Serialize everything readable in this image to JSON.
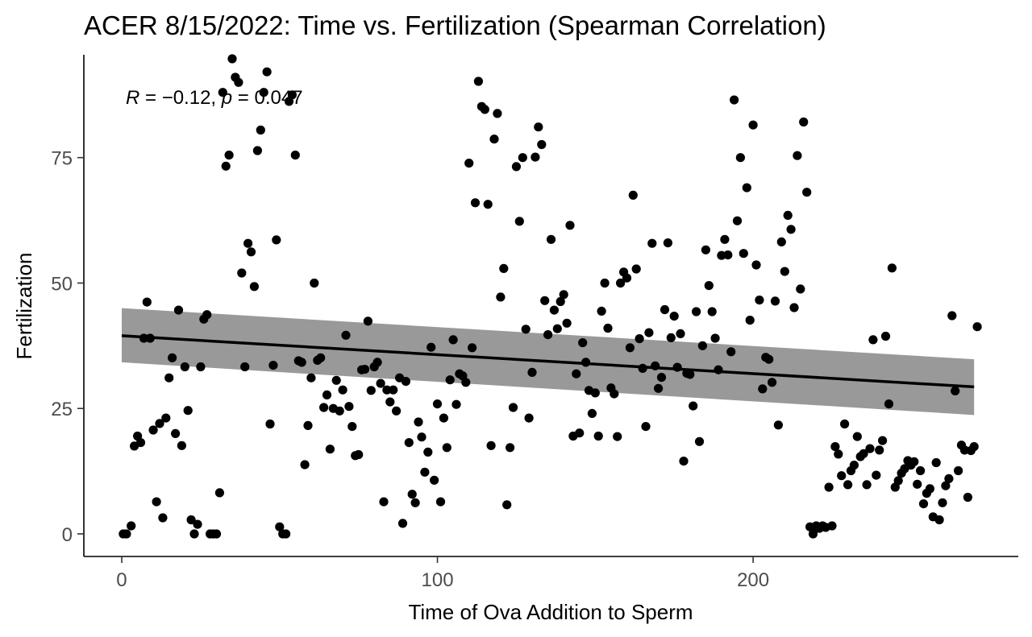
{
  "chart_data": {
    "type": "scatter",
    "title": "ACER 8/15/2022: Time vs. Fertilization (Spearman Correlation)",
    "xlabel": "Time of Ova Addition to Sperm",
    "ylabel": "Fertilization",
    "xlim": [
      -12,
      284
    ],
    "ylim": [
      -4.5,
      95.5
    ],
    "x_ticks": [
      0,
      100,
      200
    ],
    "y_ticks": [
      0,
      25,
      50,
      75
    ],
    "grid": false,
    "legend": "none",
    "annotation": {
      "r_symbol": "R",
      "r_part": " = −0.12, ",
      "p_symbol": "p",
      "p_part": " = 0.047"
    },
    "fit": {
      "x": [
        0,
        270
      ],
      "y": [
        39.5,
        29.3
      ],
      "ci_lower": [
        34.2,
        23.7
      ],
      "ci_upper": [
        45.0,
        34.8
      ]
    },
    "points": [
      [
        0.5,
        0
      ],
      [
        1.5,
        0
      ],
      [
        3,
        1.6
      ],
      [
        4,
        17.5
      ],
      [
        5,
        19.5
      ],
      [
        6,
        18.2
      ],
      [
        7,
        39
      ],
      [
        8,
        46.2
      ],
      [
        9,
        39
      ],
      [
        10,
        20.7
      ],
      [
        11,
        6.4
      ],
      [
        12,
        22
      ],
      [
        13,
        3.2
      ],
      [
        14,
        23.1
      ],
      [
        15,
        31.1
      ],
      [
        16,
        35.1
      ],
      [
        17,
        20
      ],
      [
        18,
        44.6
      ],
      [
        19,
        17.6
      ],
      [
        20,
        33.3
      ],
      [
        21,
        24.6
      ],
      [
        22,
        2.8
      ],
      [
        23,
        0
      ],
      [
        24,
        1.9
      ],
      [
        25,
        33.3
      ],
      [
        26,
        42.8
      ],
      [
        27,
        43.7
      ],
      [
        28,
        0
      ],
      [
        29,
        0
      ],
      [
        30,
        0
      ],
      [
        31,
        8.2
      ],
      [
        32,
        88
      ],
      [
        33,
        73.3
      ],
      [
        34,
        75.5
      ],
      [
        35,
        94.7
      ],
      [
        36,
        91
      ],
      [
        37,
        90
      ],
      [
        38,
        52
      ],
      [
        39,
        33.3
      ],
      [
        40,
        57.9
      ],
      [
        41,
        56.2
      ],
      [
        42,
        49.3
      ],
      [
        43,
        76.4
      ],
      [
        44,
        80.5
      ],
      [
        45,
        88
      ],
      [
        46,
        92.1
      ],
      [
        47,
        21.9
      ],
      [
        48,
        33.6
      ],
      [
        49,
        58.6
      ],
      [
        50,
        1.4
      ],
      [
        51,
        0
      ],
      [
        52,
        0
      ],
      [
        53,
        86.2
      ],
      [
        54,
        87.5
      ],
      [
        55,
        75.5
      ],
      [
        56,
        34.5
      ],
      [
        57,
        34.2
      ],
      [
        58,
        13.8
      ],
      [
        59,
        21.6
      ],
      [
        60,
        31.1
      ],
      [
        61,
        50
      ],
      [
        62,
        34.6
      ],
      [
        63,
        35.1
      ],
      [
        64,
        25.2
      ],
      [
        65,
        27.7
      ],
      [
        66,
        16.9
      ],
      [
        67,
        25
      ],
      [
        68,
        30.6
      ],
      [
        69,
        24.5
      ],
      [
        70,
        28.7
      ],
      [
        71,
        39.6
      ],
      [
        72,
        25.4
      ],
      [
        73,
        21.4
      ],
      [
        74,
        15.6
      ],
      [
        75,
        15.8
      ],
      [
        76,
        32.7
      ],
      [
        77,
        32.8
      ],
      [
        78,
        42.4
      ],
      [
        79,
        28.6
      ],
      [
        80,
        33.3
      ],
      [
        81,
        34.2
      ],
      [
        82,
        30
      ],
      [
        83,
        6.4
      ],
      [
        84,
        28.7
      ],
      [
        85,
        26.3
      ],
      [
        86,
        28.7
      ],
      [
        87,
        24.5
      ],
      [
        88,
        31.1
      ],
      [
        89,
        2.1
      ],
      [
        90,
        30.4
      ],
      [
        91,
        18.2
      ],
      [
        92,
        7.9
      ],
      [
        93,
        6.2
      ],
      [
        94,
        22.3
      ],
      [
        95,
        19.3
      ],
      [
        96,
        12.3
      ],
      [
        97,
        16.3
      ],
      [
        98,
        37.2
      ],
      [
        99,
        10.7
      ],
      [
        100,
        25.9
      ],
      [
        101,
        6.4
      ],
      [
        102,
        23.1
      ],
      [
        103,
        17.2
      ],
      [
        104,
        30.7
      ],
      [
        105,
        38.7
      ],
      [
        106,
        25.8
      ],
      [
        107,
        31.9
      ],
      [
        108,
        31.5
      ],
      [
        109,
        30.2
      ],
      [
        110,
        73.9
      ],
      [
        111,
        37.1
      ],
      [
        112,
        66
      ],
      [
        113,
        90.2
      ],
      [
        114,
        85.2
      ],
      [
        115,
        84.6
      ],
      [
        116,
        65.7
      ],
      [
        117,
        17.6
      ],
      [
        118,
        78.7
      ],
      [
        119,
        83.8
      ],
      [
        120,
        47.2
      ],
      [
        121,
        52.9
      ],
      [
        122,
        5.8
      ],
      [
        123,
        17.2
      ],
      [
        124,
        25.2
      ],
      [
        125,
        73.2
      ],
      [
        126,
        62.3
      ],
      [
        127,
        75
      ],
      [
        128,
        40.8
      ],
      [
        129,
        23.1
      ],
      [
        130,
        32.2
      ],
      [
        131,
        75.1
      ],
      [
        132,
        81.1
      ],
      [
        133,
        77.6
      ],
      [
        134,
        46.5
      ],
      [
        135,
        39.7
      ],
      [
        136,
        58.7
      ],
      [
        137,
        44.6
      ],
      [
        138,
        40.9
      ],
      [
        139,
        46.3
      ],
      [
        140,
        47.7
      ],
      [
        141,
        42
      ],
      [
        142,
        61.5
      ],
      [
        143,
        19.5
      ],
      [
        144,
        31.9
      ],
      [
        145,
        20.1
      ],
      [
        146,
        38.1
      ],
      [
        147,
        34.2
      ],
      [
        148,
        28.6
      ],
      [
        149,
        24
      ],
      [
        150,
        28.1
      ],
      [
        151,
        19.5
      ],
      [
        152,
        44.4
      ],
      [
        153,
        50
      ],
      [
        154,
        41
      ],
      [
        155,
        29.1
      ],
      [
        156,
        27.9
      ],
      [
        157,
        19.4
      ],
      [
        158,
        50
      ],
      [
        159,
        52.2
      ],
      [
        160,
        51
      ],
      [
        161,
        37.1
      ],
      [
        162,
        67.5
      ],
      [
        163,
        52.8
      ],
      [
        164,
        38.9
      ],
      [
        165,
        33
      ],
      [
        166,
        21.4
      ],
      [
        167,
        40.1
      ],
      [
        168,
        57.9
      ],
      [
        169,
        33.5
      ],
      [
        170,
        29
      ],
      [
        171,
        31.2
      ],
      [
        172,
        44.7
      ],
      [
        173,
        58
      ],
      [
        174,
        39.1
      ],
      [
        175,
        43.4
      ],
      [
        176,
        33.2
      ],
      [
        177,
        39.9
      ],
      [
        178,
        14.5
      ],
      [
        179,
        32
      ],
      [
        180,
        31.8
      ],
      [
        181,
        25.5
      ],
      [
        182,
        44.3
      ],
      [
        183,
        18.4
      ],
      [
        184,
        37.5
      ],
      [
        185,
        56.6
      ],
      [
        186,
        49.5
      ],
      [
        187,
        44.3
      ],
      [
        188,
        39
      ],
      [
        189,
        32.7
      ],
      [
        190,
        55.5
      ],
      [
        191,
        58.7
      ],
      [
        192,
        55.6
      ],
      [
        193,
        36.3
      ],
      [
        194,
        86.5
      ],
      [
        195,
        62.4
      ],
      [
        196,
        75
      ],
      [
        197,
        55.9
      ],
      [
        198,
        69
      ],
      [
        199,
        42.6
      ],
      [
        200,
        81.5
      ],
      [
        201,
        53.6
      ],
      [
        202,
        46.6
      ],
      [
        203,
        28.9
      ],
      [
        204,
        35.2
      ],
      [
        205,
        34.8
      ],
      [
        206,
        30.2
      ],
      [
        207,
        46.4
      ],
      [
        208,
        21.7
      ],
      [
        209,
        58.2
      ],
      [
        210,
        52.3
      ],
      [
        211,
        63.5
      ],
      [
        212,
        60.7
      ],
      [
        213,
        45.1
      ],
      [
        214,
        75.4
      ],
      [
        215,
        48.8
      ],
      [
        216,
        82.1
      ],
      [
        217,
        68.1
      ],
      [
        218,
        1.4
      ],
      [
        219,
        0
      ],
      [
        220,
        1.6
      ],
      [
        221,
        1.1
      ],
      [
        222,
        1.6
      ],
      [
        223,
        1.3
      ],
      [
        224,
        9.3
      ],
      [
        225,
        1.6
      ],
      [
        226,
        17.4
      ],
      [
        227,
        15.9
      ],
      [
        228,
        11.6
      ],
      [
        229,
        21.9
      ],
      [
        230,
        9.8
      ],
      [
        231,
        12.6
      ],
      [
        232,
        13.7
      ],
      [
        233,
        19.4
      ],
      [
        234,
        15.4
      ],
      [
        235,
        16
      ],
      [
        236,
        9.8
      ],
      [
        237,
        17
      ],
      [
        238,
        38.7
      ],
      [
        239,
        11.7
      ],
      [
        240,
        16.7
      ],
      [
        241,
        18.6
      ],
      [
        242,
        39.4
      ],
      [
        243,
        25.9
      ],
      [
        244,
        53
      ],
      [
        245,
        9.3
      ],
      [
        246,
        10.6
      ],
      [
        247,
        12.1
      ],
      [
        248,
        13
      ],
      [
        249,
        14.6
      ],
      [
        250,
        13.7
      ],
      [
        251,
        14.4
      ],
      [
        252,
        9.9
      ],
      [
        253,
        12.6
      ],
      [
        254,
        6
      ],
      [
        255,
        8.1
      ],
      [
        256,
        9
      ],
      [
        257,
        3.4
      ],
      [
        258,
        14.2
      ],
      [
        259,
        2.8
      ],
      [
        260,
        6.2
      ],
      [
        261,
        9.6
      ],
      [
        262,
        11
      ],
      [
        263,
        43.5
      ],
      [
        264,
        28.5
      ],
      [
        265,
        12.6
      ],
      [
        266,
        17.7
      ],
      [
        267,
        16.7
      ],
      [
        268,
        7.3
      ],
      [
        269,
        16.6
      ],
      [
        270,
        17.4
      ],
      [
        271,
        41.3
      ]
    ]
  }
}
